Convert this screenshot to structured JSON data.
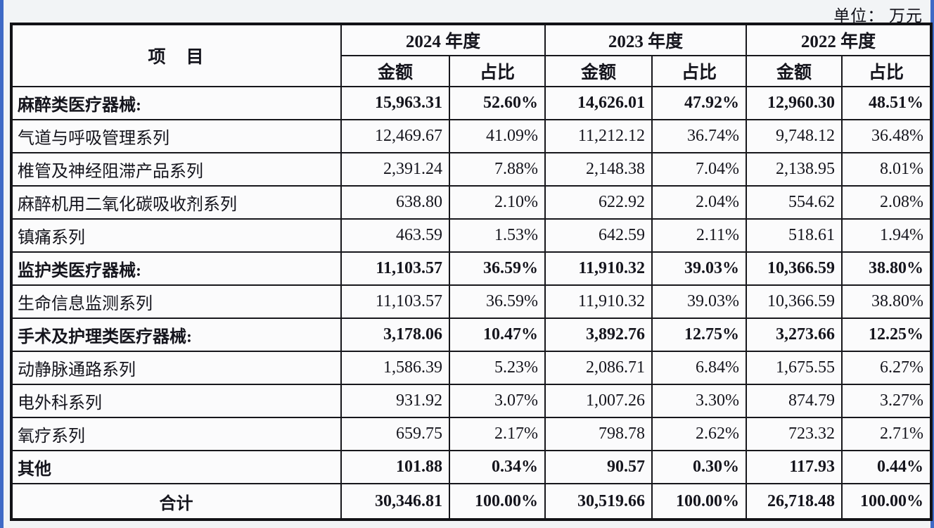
{
  "page": {
    "unit_label": "单位： 万元"
  },
  "colors": {
    "edge_blue": "#3f6ac6",
    "table_border": "#17171c",
    "background": "#f2f4f6",
    "table_background": "#fbfbfc",
    "text": "#15151d"
  },
  "table": {
    "header": {
      "item_label": "项　目",
      "year_groups": [
        "2024 年度",
        "2023 年度",
        "2022 年度"
      ],
      "sub_headers": [
        "金额",
        "占比"
      ]
    },
    "rows": [
      {
        "item": "麻醉类医疗器械:",
        "bold": true,
        "center": false,
        "values": [
          "15,963.31",
          "52.60%",
          "14,626.01",
          "47.92%",
          "12,960.30",
          "48.51%"
        ]
      },
      {
        "item": "气道与呼吸管理系列",
        "bold": false,
        "center": false,
        "values": [
          "12,469.67",
          "41.09%",
          "11,212.12",
          "36.74%",
          "9,748.12",
          "36.48%"
        ]
      },
      {
        "item": "椎管及神经阻滞产品系列",
        "bold": false,
        "center": false,
        "values": [
          "2,391.24",
          "7.88%",
          "2,148.38",
          "7.04%",
          "2,138.95",
          "8.01%"
        ]
      },
      {
        "item": "麻醉机用二氧化碳吸收剂系列",
        "bold": false,
        "center": false,
        "values": [
          "638.80",
          "2.10%",
          "622.92",
          "2.04%",
          "554.62",
          "2.08%"
        ]
      },
      {
        "item": "镇痛系列",
        "bold": false,
        "center": false,
        "values": [
          "463.59",
          "1.53%",
          "642.59",
          "2.11%",
          "518.61",
          "1.94%"
        ]
      },
      {
        "item": "监护类医疗器械:",
        "bold": true,
        "center": false,
        "values": [
          "11,103.57",
          "36.59%",
          "11,910.32",
          "39.03%",
          "10,366.59",
          "38.80%"
        ]
      },
      {
        "item": "生命信息监测系列",
        "bold": false,
        "center": false,
        "values": [
          "11,103.57",
          "36.59%",
          "11,910.32",
          "39.03%",
          "10,366.59",
          "38.80%"
        ]
      },
      {
        "item": "手术及护理类医疗器械:",
        "bold": true,
        "center": false,
        "values": [
          "3,178.06",
          "10.47%",
          "3,892.76",
          "12.75%",
          "3,273.66",
          "12.25%"
        ]
      },
      {
        "item": "动静脉通路系列",
        "bold": false,
        "center": false,
        "values": [
          "1,586.39",
          "5.23%",
          "2,086.71",
          "6.84%",
          "1,675.55",
          "6.27%"
        ]
      },
      {
        "item": "电外科系列",
        "bold": false,
        "center": false,
        "values": [
          "931.92",
          "3.07%",
          "1,007.26",
          "3.30%",
          "874.79",
          "3.27%"
        ]
      },
      {
        "item": "氧疗系列",
        "bold": false,
        "center": false,
        "values": [
          "659.75",
          "2.17%",
          "798.78",
          "2.62%",
          "723.32",
          "2.71%"
        ]
      },
      {
        "item": "其他",
        "bold": true,
        "center": false,
        "values": [
          "101.88",
          "0.34%",
          "90.57",
          "0.30%",
          "117.93",
          "0.44%"
        ]
      },
      {
        "item": "合计",
        "bold": true,
        "center": true,
        "values": [
          "30,346.81",
          "100.00%",
          "30,519.66",
          "100.00%",
          "26,718.48",
          "100.00%"
        ]
      }
    ]
  }
}
